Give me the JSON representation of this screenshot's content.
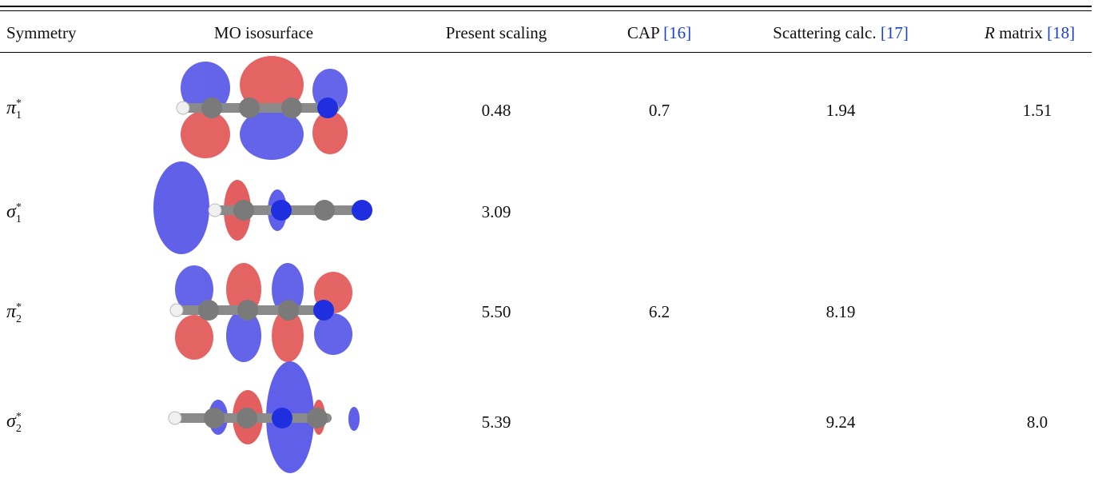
{
  "table": {
    "headers": {
      "symmetry": "Symmetry",
      "mo": "MO isosurface",
      "scaling": "Present scaling",
      "cap": "CAP",
      "cap_ref": "[16]",
      "scatter": "Scattering calc.",
      "scatter_ref": "[17]",
      "rmatrix_italic": "R",
      "rmatrix": "matrix",
      "rmatrix_ref": "[18]"
    },
    "rows": [
      {
        "sym_letter": "π",
        "sym_sub": "1",
        "sym_sup": "*",
        "scaling": "0.48",
        "cap": "0.7",
        "scatter": "1.94",
        "rmatrix": "1.51"
      },
      {
        "sym_letter": "σ",
        "sym_sub": "1",
        "sym_sup": "*",
        "scaling": "3.09",
        "cap": "",
        "scatter": "",
        "rmatrix": ""
      },
      {
        "sym_letter": "π",
        "sym_sub": "2",
        "sym_sup": "*",
        "scaling": "5.50",
        "cap": "6.2",
        "scatter": "8.19",
        "rmatrix": ""
      },
      {
        "sym_letter": "σ",
        "sym_sub": "2",
        "sym_sup": "*",
        "scaling": "5.39",
        "cap": "",
        "scatter": "9.24",
        "rmatrix": "8.0"
      }
    ]
  },
  "colors": {
    "lobe_blue": "#4a4ae6",
    "lobe_red": "#e04a4a",
    "atom_carbon": "#7a7a7a",
    "atom_nitrogen": "#1f2fe0",
    "atom_hydrogen": "#f0f0f0",
    "link": "#1a3fd6"
  }
}
